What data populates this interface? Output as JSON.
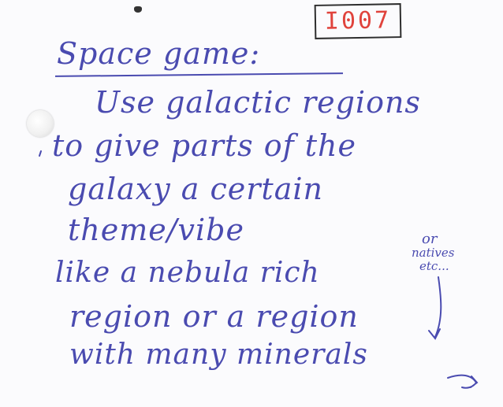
{
  "note": {
    "reference_code": "I007",
    "title": "Space game:",
    "lines": [
      "Use galactic regions",
      "to give parts of the",
      "galaxy a certain",
      "theme/vibe",
      "like a nebula rich",
      "region or a region",
      "with many minerals"
    ],
    "side_note": {
      "or": "or",
      "natives": "natives",
      "etc": "etc..."
    }
  },
  "ink_color": "#4a4bb0",
  "code_color": "#e0433c"
}
